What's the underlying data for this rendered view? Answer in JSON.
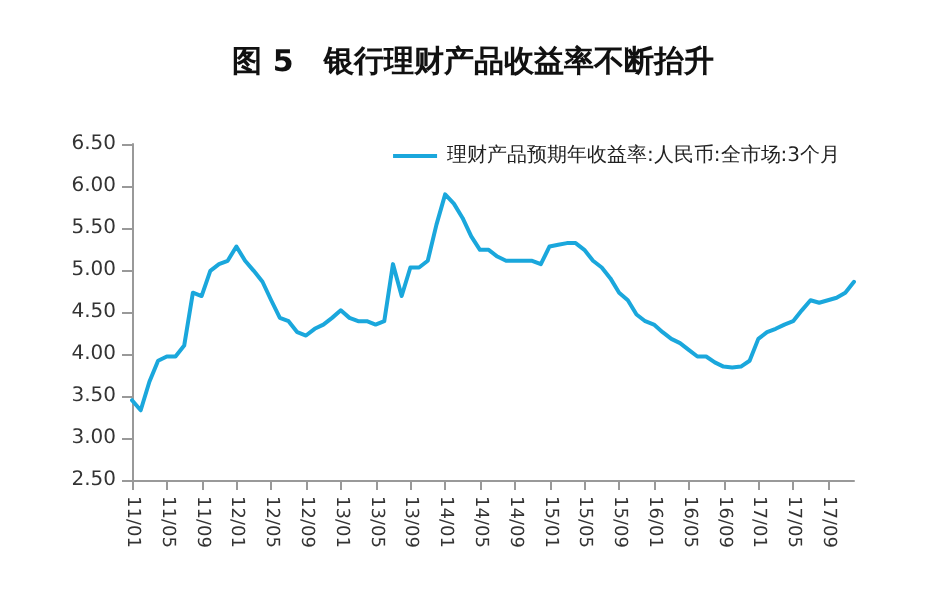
{
  "chart_data": {
    "type": "line",
    "title": "图 5　银行理财产品收益率不断抬升",
    "categories": [
      "11/01",
      null,
      null,
      null,
      "11/05",
      null,
      null,
      null,
      "11/09",
      null,
      null,
      null,
      "12/01",
      null,
      null,
      null,
      "12/05",
      null,
      null,
      null,
      "12/09",
      null,
      null,
      null,
      "13/01",
      null,
      null,
      null,
      "13/05",
      null,
      null,
      null,
      "13/09",
      null,
      null,
      null,
      "14/01",
      null,
      null,
      null,
      "14/05",
      null,
      null,
      null,
      "14/09",
      null,
      null,
      null,
      "15/01",
      null,
      null,
      null,
      "15/05",
      null,
      null,
      null,
      "15/09",
      null,
      null,
      null,
      "16/01",
      null,
      null,
      null,
      "16/05",
      null,
      null,
      null,
      "16/09",
      null,
      null,
      null,
      "17/01",
      null,
      null,
      null,
      "17/05",
      null,
      null,
      null,
      "17/09",
      null,
      null,
      null
    ],
    "series": [
      {
        "name": "理财产品预期年收益率:人民币:全市场:3个月",
        "color": "#1aa7dc",
        "values": [
          3.45,
          3.33,
          3.67,
          3.92,
          3.97,
          3.97,
          4.1,
          4.73,
          4.69,
          4.99,
          5.07,
          5.11,
          5.28,
          5.11,
          4.99,
          4.86,
          4.64,
          4.43,
          4.39,
          4.26,
          4.22,
          4.3,
          4.35,
          4.43,
          4.52,
          4.43,
          4.39,
          4.39,
          4.35,
          4.39,
          5.07,
          4.69,
          5.03,
          5.03,
          5.11,
          5.54,
          5.9,
          5.79,
          5.62,
          5.4,
          5.24,
          5.24,
          5.16,
          5.11,
          5.11,
          5.11,
          5.11,
          5.07,
          5.28,
          5.3,
          5.32,
          5.32,
          5.24,
          5.11,
          5.03,
          4.9,
          4.73,
          4.64,
          4.47,
          4.39,
          4.35,
          4.26,
          4.18,
          4.13,
          4.05,
          3.97,
          3.97,
          3.9,
          3.85,
          3.84,
          3.85,
          3.92,
          4.18,
          4.26,
          4.3,
          4.35,
          4.39,
          4.52,
          4.64,
          4.61,
          4.64,
          4.67,
          4.73,
          4.86
        ]
      }
    ],
    "ylim": [
      2.5,
      6.5
    ],
    "yticks": [
      {
        "value": 2.5,
        "label": "2.50"
      },
      {
        "value": 3,
        "label": "3.00"
      },
      {
        "value": 3.5,
        "label": "3.50"
      },
      {
        "value": 4,
        "label": "4.00"
      },
      {
        "value": 4.5,
        "label": "4.50"
      },
      {
        "value": 5,
        "label": "5.00"
      },
      {
        "value": 5.5,
        "label": "5.50"
      },
      {
        "value": 6,
        "label": "6.00"
      },
      {
        "value": 6.5,
        "label": "6.50"
      }
    ],
    "grid": false,
    "legend": "top right",
    "marker": "none",
    "line_style": "solid"
  }
}
